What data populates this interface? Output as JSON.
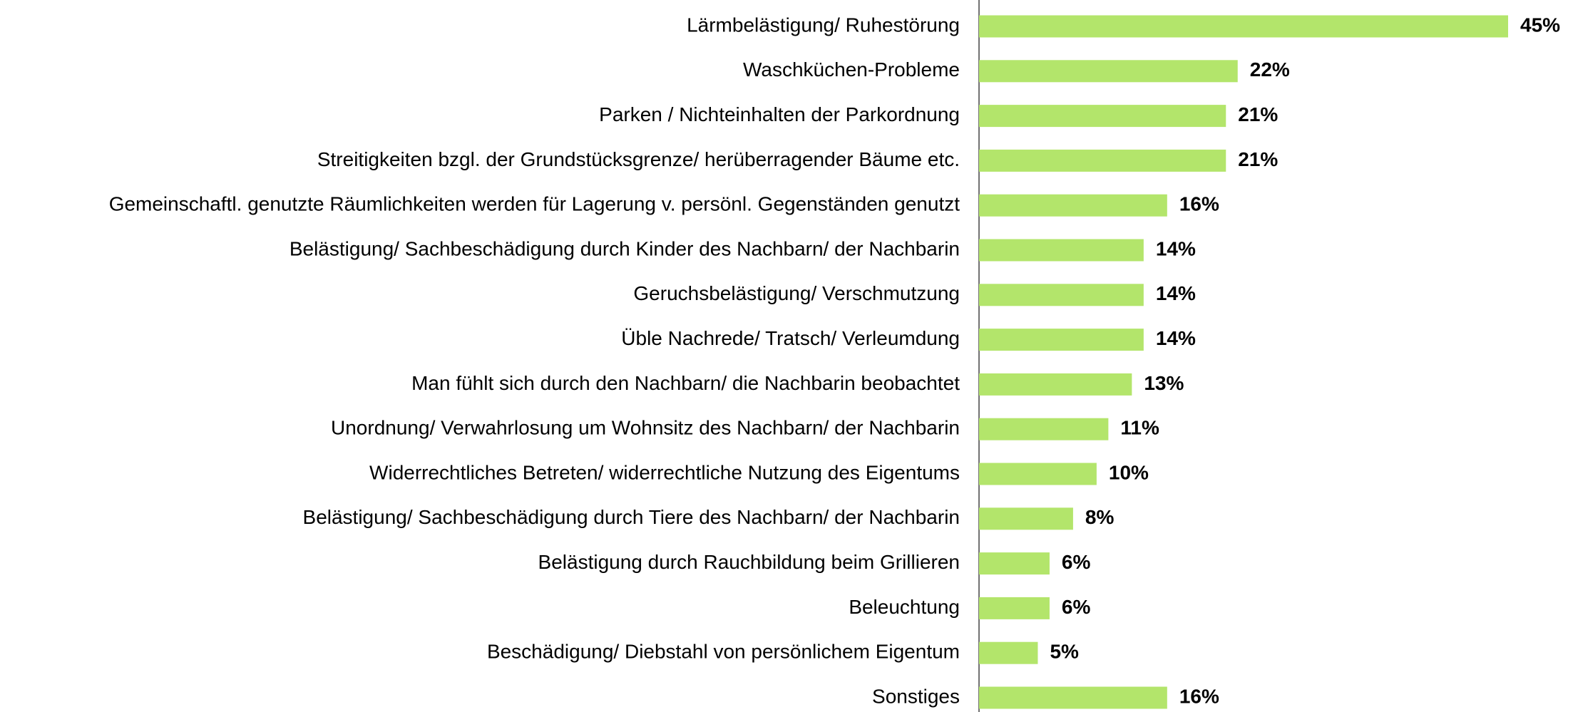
{
  "chart_data": {
    "type": "barh",
    "categories": [
      "Lärmbelästigung/ Ruhestörung",
      "Waschküchen-Probleme",
      "Parken / Nichteinhalten der Parkordnung",
      "Streitigkeiten bzgl. der Grundstücksgrenze/ herüberragender Bäume etc.",
      "Gemeinschaftl. genutzte Räumlichkeiten werden für Lagerung v. persönl. Gegenständen genutzt",
      "Belästigung/ Sachbeschädigung durch Kinder des Nachbarn/ der Nachbarin",
      "Geruchsbelästigung/ Verschmutzung",
      "Üble Nachrede/ Tratsch/ Verleumdung",
      "Man fühlt sich durch den Nachbarn/ die Nachbarin beobachtet",
      "Unordnung/ Verwahrlosung um Wohnsitz des Nachbarn/ der Nachbarin",
      "Widerrechtliches Betreten/ widerrechtliche Nutzung des Eigentums",
      "Belästigung/ Sachbeschädigung durch Tiere des Nachbarn/ der Nachbarin",
      "Belästigung durch Rauchbildung beim Grillieren",
      "Beleuchtung",
      "Beschädigung/ Diebstahl von persönlichem Eigentum",
      "Sonstiges"
    ],
    "values": [
      45,
      22,
      21,
      21,
      16,
      14,
      14,
      14,
      13,
      11,
      10,
      8,
      6,
      6,
      5,
      16
    ],
    "value_labels": [
      "45%",
      "22%",
      "21%",
      "21%",
      "16%",
      "14%",
      "14%",
      "14%",
      "13%",
      "11%",
      "10%",
      "8%",
      "6%",
      "6%",
      "5%",
      "16%"
    ],
    "color": "#b3e56b"
  }
}
